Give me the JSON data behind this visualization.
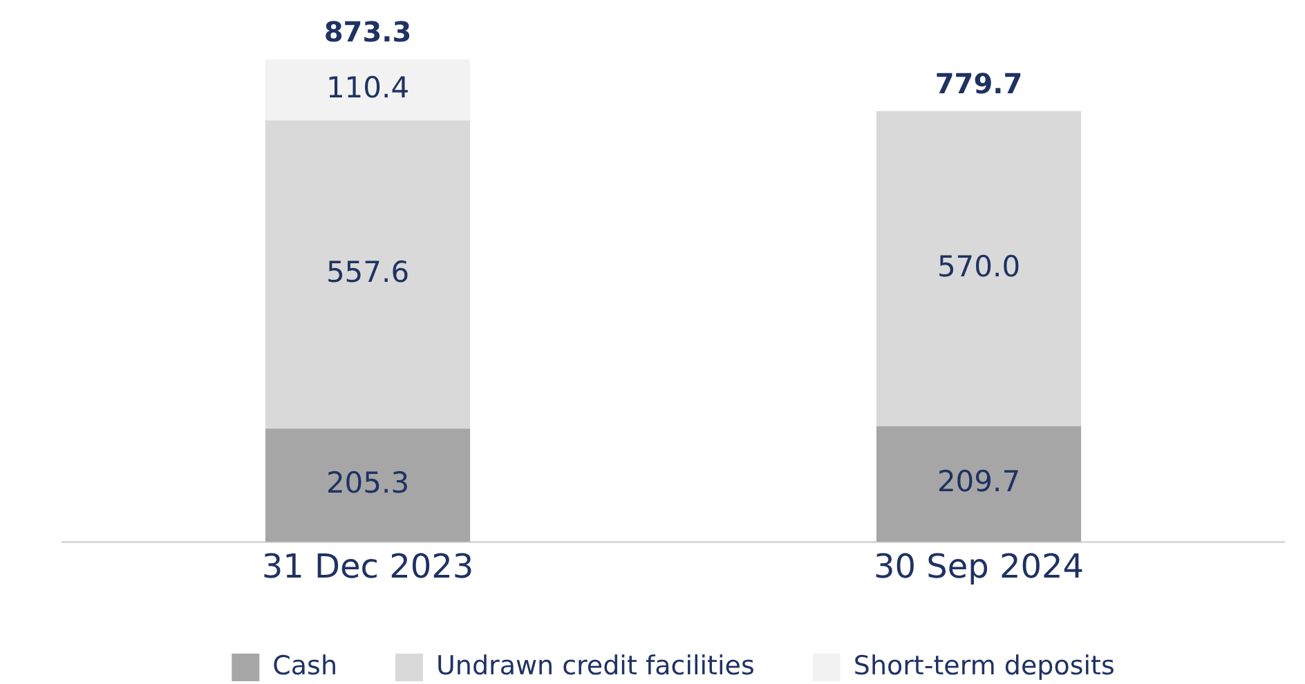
{
  "chart_data": {
    "type": "bar",
    "stacked": true,
    "categories": [
      "31 Dec 2023",
      "30 Sep 2024"
    ],
    "series": [
      {
        "name": "Cash",
        "color": "#a6a6a6",
        "values": [
          205.3,
          209.7
        ],
        "value_labels": [
          "205.3",
          "209.7"
        ]
      },
      {
        "name": "Undrawn credit facilities",
        "color": "#d9d9d9",
        "values": [
          557.6,
          570.0
        ],
        "value_labels": [
          "557.6",
          "570.0"
        ]
      },
      {
        "name": "Short-term deposits",
        "color": "#f2f2f2",
        "values": [
          110.4,
          null
        ],
        "value_labels": [
          "110.4",
          null
        ]
      }
    ],
    "totals": [
      "873.3",
      "779.7"
    ],
    "legend": "bottom",
    "grid": false,
    "tick_labels": "x"
  }
}
